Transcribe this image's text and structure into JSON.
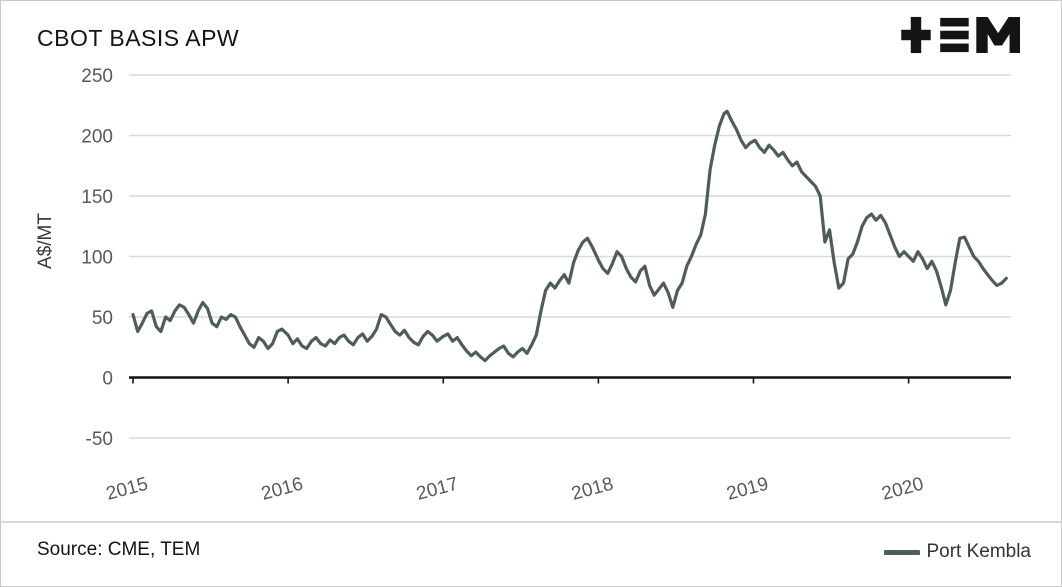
{
  "header": {
    "logo": "TEM"
  },
  "footer": {
    "source_label": "Source: CME, TEM"
  },
  "chart_data": {
    "type": "line",
    "title": "CBOT BASIS APW",
    "xlabel": "",
    "ylabel": "A$/MT",
    "ylim": [
      -50,
      250
    ],
    "xlim": [
      2015,
      2020.66
    ],
    "yticks": [
      250,
      200,
      150,
      100,
      50,
      0,
      -50
    ],
    "xticks": [
      2015,
      2016,
      2017,
      2018,
      2019,
      2020
    ],
    "grid": "horizontal",
    "legend_position": "bottom-right",
    "axis_text_color": "#595959",
    "gridline_color": "#d9d9d9",
    "series": [
      {
        "name": "Port Kembla",
        "color": "#4e5d56",
        "points": [
          [
            2015.0,
            52
          ],
          [
            2015.03,
            38
          ],
          [
            2015.06,
            45
          ],
          [
            2015.09,
            53
          ],
          [
            2015.12,
            55
          ],
          [
            2015.15,
            42
          ],
          [
            2015.18,
            38
          ],
          [
            2015.21,
            50
          ],
          [
            2015.24,
            47
          ],
          [
            2015.27,
            55
          ],
          [
            2015.3,
            60
          ],
          [
            2015.33,
            58
          ],
          [
            2015.36,
            52
          ],
          [
            2015.39,
            45
          ],
          [
            2015.42,
            55
          ],
          [
            2015.45,
            62
          ],
          [
            2015.48,
            57
          ],
          [
            2015.51,
            45
          ],
          [
            2015.54,
            42
          ],
          [
            2015.57,
            50
          ],
          [
            2015.6,
            48
          ],
          [
            2015.63,
            52
          ],
          [
            2015.66,
            50
          ],
          [
            2015.69,
            42
          ],
          [
            2015.72,
            35
          ],
          [
            2015.75,
            28
          ],
          [
            2015.78,
            25
          ],
          [
            2015.81,
            33
          ],
          [
            2015.84,
            30
          ],
          [
            2015.87,
            24
          ],
          [
            2015.9,
            28
          ],
          [
            2015.93,
            38
          ],
          [
            2015.96,
            40
          ],
          [
            2016.0,
            35
          ],
          [
            2016.03,
            28
          ],
          [
            2016.06,
            32
          ],
          [
            2016.09,
            26
          ],
          [
            2016.12,
            24
          ],
          [
            2016.15,
            30
          ],
          [
            2016.18,
            33
          ],
          [
            2016.21,
            28
          ],
          [
            2016.24,
            26
          ],
          [
            2016.27,
            31
          ],
          [
            2016.3,
            28
          ],
          [
            2016.33,
            33
          ],
          [
            2016.36,
            35
          ],
          [
            2016.39,
            30
          ],
          [
            2016.42,
            27
          ],
          [
            2016.45,
            33
          ],
          [
            2016.48,
            36
          ],
          [
            2016.51,
            30
          ],
          [
            2016.54,
            34
          ],
          [
            2016.57,
            40
          ],
          [
            2016.6,
            52
          ],
          [
            2016.63,
            50
          ],
          [
            2016.66,
            44
          ],
          [
            2016.69,
            38
          ],
          [
            2016.72,
            35
          ],
          [
            2016.75,
            39
          ],
          [
            2016.78,
            33
          ],
          [
            2016.81,
            29
          ],
          [
            2016.84,
            27
          ],
          [
            2016.87,
            34
          ],
          [
            2016.9,
            38
          ],
          [
            2016.93,
            35
          ],
          [
            2016.96,
            30
          ],
          [
            2017.0,
            34
          ],
          [
            2017.03,
            36
          ],
          [
            2017.06,
            30
          ],
          [
            2017.09,
            33
          ],
          [
            2017.12,
            27
          ],
          [
            2017.15,
            22
          ],
          [
            2017.18,
            18
          ],
          [
            2017.21,
            21
          ],
          [
            2017.24,
            17
          ],
          [
            2017.27,
            14
          ],
          [
            2017.3,
            18
          ],
          [
            2017.33,
            21
          ],
          [
            2017.36,
            24
          ],
          [
            2017.39,
            26
          ],
          [
            2017.42,
            20
          ],
          [
            2017.45,
            17
          ],
          [
            2017.48,
            21
          ],
          [
            2017.51,
            24
          ],
          [
            2017.54,
            20
          ],
          [
            2017.57,
            27
          ],
          [
            2017.6,
            35
          ],
          [
            2017.63,
            55
          ],
          [
            2017.66,
            72
          ],
          [
            2017.69,
            78
          ],
          [
            2017.72,
            74
          ],
          [
            2017.75,
            80
          ],
          [
            2017.78,
            85
          ],
          [
            2017.81,
            78
          ],
          [
            2017.84,
            95
          ],
          [
            2017.87,
            105
          ],
          [
            2017.9,
            112
          ],
          [
            2017.93,
            115
          ],
          [
            2017.96,
            108
          ],
          [
            2018.0,
            97
          ],
          [
            2018.03,
            90
          ],
          [
            2018.06,
            86
          ],
          [
            2018.09,
            94
          ],
          [
            2018.12,
            104
          ],
          [
            2018.15,
            100
          ],
          [
            2018.18,
            90
          ],
          [
            2018.21,
            83
          ],
          [
            2018.24,
            79
          ],
          [
            2018.27,
            88
          ],
          [
            2018.3,
            92
          ],
          [
            2018.33,
            76
          ],
          [
            2018.36,
            68
          ],
          [
            2018.39,
            73
          ],
          [
            2018.42,
            78
          ],
          [
            2018.45,
            70
          ],
          [
            2018.48,
            58
          ],
          [
            2018.51,
            72
          ],
          [
            2018.54,
            78
          ],
          [
            2018.57,
            92
          ],
          [
            2018.6,
            100
          ],
          [
            2018.63,
            110
          ],
          [
            2018.66,
            118
          ],
          [
            2018.69,
            135
          ],
          [
            2018.72,
            172
          ],
          [
            2018.75,
            192
          ],
          [
            2018.78,
            208
          ],
          [
            2018.81,
            218
          ],
          [
            2018.83,
            220
          ],
          [
            2018.86,
            212
          ],
          [
            2018.89,
            205
          ],
          [
            2018.92,
            196
          ],
          [
            2018.95,
            190
          ],
          [
            2018.98,
            194
          ],
          [
            2019.01,
            196
          ],
          [
            2019.04,
            190
          ],
          [
            2019.07,
            186
          ],
          [
            2019.1,
            192
          ],
          [
            2019.13,
            188
          ],
          [
            2019.16,
            183
          ],
          [
            2019.19,
            186
          ],
          [
            2019.22,
            180
          ],
          [
            2019.25,
            175
          ],
          [
            2019.28,
            178
          ],
          [
            2019.31,
            170
          ],
          [
            2019.34,
            166
          ],
          [
            2019.37,
            162
          ],
          [
            2019.4,
            158
          ],
          [
            2019.43,
            150
          ],
          [
            2019.46,
            112
          ],
          [
            2019.49,
            122
          ],
          [
            2019.52,
            95
          ],
          [
            2019.55,
            74
          ],
          [
            2019.58,
            78
          ],
          [
            2019.61,
            98
          ],
          [
            2019.64,
            102
          ],
          [
            2019.67,
            112
          ],
          [
            2019.7,
            125
          ],
          [
            2019.73,
            132
          ],
          [
            2019.76,
            135
          ],
          [
            2019.79,
            130
          ],
          [
            2019.82,
            134
          ],
          [
            2019.85,
            128
          ],
          [
            2019.88,
            118
          ],
          [
            2019.91,
            108
          ],
          [
            2019.94,
            100
          ],
          [
            2019.97,
            104
          ],
          [
            2020.0,
            100
          ],
          [
            2020.03,
            96
          ],
          [
            2020.06,
            104
          ],
          [
            2020.09,
            98
          ],
          [
            2020.12,
            90
          ],
          [
            2020.15,
            96
          ],
          [
            2020.18,
            88
          ],
          [
            2020.21,
            75
          ],
          [
            2020.24,
            60
          ],
          [
            2020.27,
            72
          ],
          [
            2020.3,
            95
          ],
          [
            2020.33,
            115
          ],
          [
            2020.36,
            116
          ],
          [
            2020.39,
            108
          ],
          [
            2020.42,
            100
          ],
          [
            2020.45,
            96
          ],
          [
            2020.48,
            90
          ],
          [
            2020.51,
            85
          ],
          [
            2020.54,
            80
          ],
          [
            2020.57,
            76
          ],
          [
            2020.6,
            78
          ],
          [
            2020.63,
            82
          ]
        ]
      }
    ]
  }
}
